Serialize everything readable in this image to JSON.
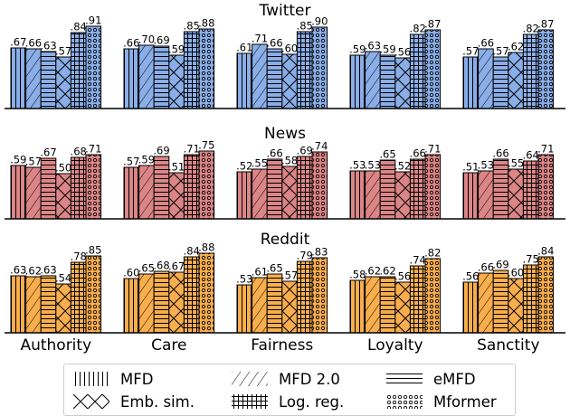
{
  "chart_data": [
    {
      "type": "bar",
      "title": "Twitter",
      "categories": [
        "Authority",
        "Care",
        "Fairness",
        "Loyalty",
        "Sanctity"
      ],
      "color": "#8aaee8",
      "series": [
        {
          "name": "MFD",
          "values": [
            0.67,
            0.66,
            0.61,
            0.59,
            0.57
          ]
        },
        {
          "name": "MFD 2.0",
          "values": [
            0.66,
            0.7,
            0.71,
            0.63,
            0.66
          ]
        },
        {
          "name": "eMFD",
          "values": [
            0.63,
            0.69,
            0.66,
            0.59,
            0.57
          ]
        },
        {
          "name": "Emb. sim.",
          "values": [
            0.57,
            0.59,
            0.6,
            0.56,
            0.62
          ]
        },
        {
          "name": "Log. reg.",
          "values": [
            0.84,
            0.85,
            0.85,
            0.82,
            0.82
          ]
        },
        {
          "name": "Mformer",
          "values": [
            0.91,
            0.88,
            0.9,
            0.87,
            0.87
          ]
        }
      ],
      "value_labels": [
        [
          ".67",
          ".66",
          ".63",
          ".57",
          ".84",
          ".91"
        ],
        [
          ".66",
          ".70",
          ".69",
          ".59",
          ".85",
          ".88"
        ],
        [
          ".61",
          ".71",
          ".66",
          ".60",
          ".85",
          ".90"
        ],
        [
          ".59",
          ".63",
          ".59",
          ".56",
          ".82",
          ".87"
        ],
        [
          ".57",
          ".66",
          ".57",
          ".62",
          ".82",
          ".87"
        ]
      ]
    },
    {
      "type": "bar",
      "title": "News",
      "categories": [
        "Authority",
        "Care",
        "Fairness",
        "Loyalty",
        "Sanctity"
      ],
      "color": "#dc8586",
      "series": [
        {
          "name": "MFD",
          "values": [
            0.59,
            0.57,
            0.52,
            0.53,
            0.51
          ]
        },
        {
          "name": "MFD 2.0",
          "values": [
            0.57,
            0.59,
            0.55,
            0.53,
            0.53
          ]
        },
        {
          "name": "eMFD",
          "values": [
            0.67,
            0.69,
            0.66,
            0.65,
            0.66
          ]
        },
        {
          "name": "Emb. sim.",
          "values": [
            0.5,
            0.51,
            0.58,
            0.52,
            0.55
          ]
        },
        {
          "name": "Log. reg.",
          "values": [
            0.68,
            0.71,
            0.69,
            0.66,
            0.64
          ]
        },
        {
          "name": "Mformer",
          "values": [
            0.71,
            0.75,
            0.74,
            0.71,
            0.71
          ]
        }
      ],
      "value_labels": [
        [
          ".59",
          ".57",
          ".67",
          ".50",
          ".68",
          ".71"
        ],
        [
          ".57",
          ".59",
          ".69",
          ".51",
          ".71",
          ".75"
        ],
        [
          ".52",
          ".55",
          ".66",
          ".58",
          ".69",
          ".74"
        ],
        [
          ".53",
          ".53",
          ".65",
          ".52",
          ".66",
          ".71"
        ],
        [
          ".51",
          ".53",
          ".66",
          ".55",
          ".64",
          ".71"
        ]
      ]
    },
    {
      "type": "bar",
      "title": "Reddit",
      "categories": [
        "Authority",
        "Care",
        "Fairness",
        "Loyalty",
        "Sanctity"
      ],
      "color": "#f9ae4d",
      "series": [
        {
          "name": "MFD",
          "values": [
            0.63,
            0.6,
            0.53,
            0.58,
            0.56
          ]
        },
        {
          "name": "MFD 2.0",
          "values": [
            0.62,
            0.65,
            0.61,
            0.62,
            0.66
          ]
        },
        {
          "name": "eMFD",
          "values": [
            0.63,
            0.68,
            0.65,
            0.62,
            0.69
          ]
        },
        {
          "name": "Emb. sim.",
          "values": [
            0.54,
            0.67,
            0.57,
            0.56,
            0.6
          ]
        },
        {
          "name": "Log. reg.",
          "values": [
            0.78,
            0.84,
            0.79,
            0.74,
            0.75
          ]
        },
        {
          "name": "Mformer",
          "values": [
            0.85,
            0.88,
            0.83,
            0.82,
            0.84
          ]
        }
      ],
      "value_labels": [
        [
          ".63",
          ".62",
          ".63",
          ".54",
          ".78",
          ".85"
        ],
        [
          ".60",
          ".65",
          ".68",
          ".67",
          ".84",
          ".88"
        ],
        [
          ".53",
          ".61",
          ".65",
          ".57",
          ".79",
          ".83"
        ],
        [
          ".58",
          ".62",
          ".62",
          ".56",
          ".74",
          ".82"
        ],
        [
          ".56",
          ".66",
          ".69",
          ".60",
          ".75",
          ".84"
        ]
      ]
    }
  ],
  "legend": [
    {
      "label": "MFD",
      "hatch": "vertical"
    },
    {
      "label": "MFD 2.0",
      "hatch": "diagonal"
    },
    {
      "label": "eMFD",
      "hatch": "horizontal"
    },
    {
      "label": "Emb. sim.",
      "hatch": "crosshatch"
    },
    {
      "label": "Log. reg.",
      "hatch": "grid"
    },
    {
      "label": "Mformer",
      "hatch": "circles"
    }
  ]
}
